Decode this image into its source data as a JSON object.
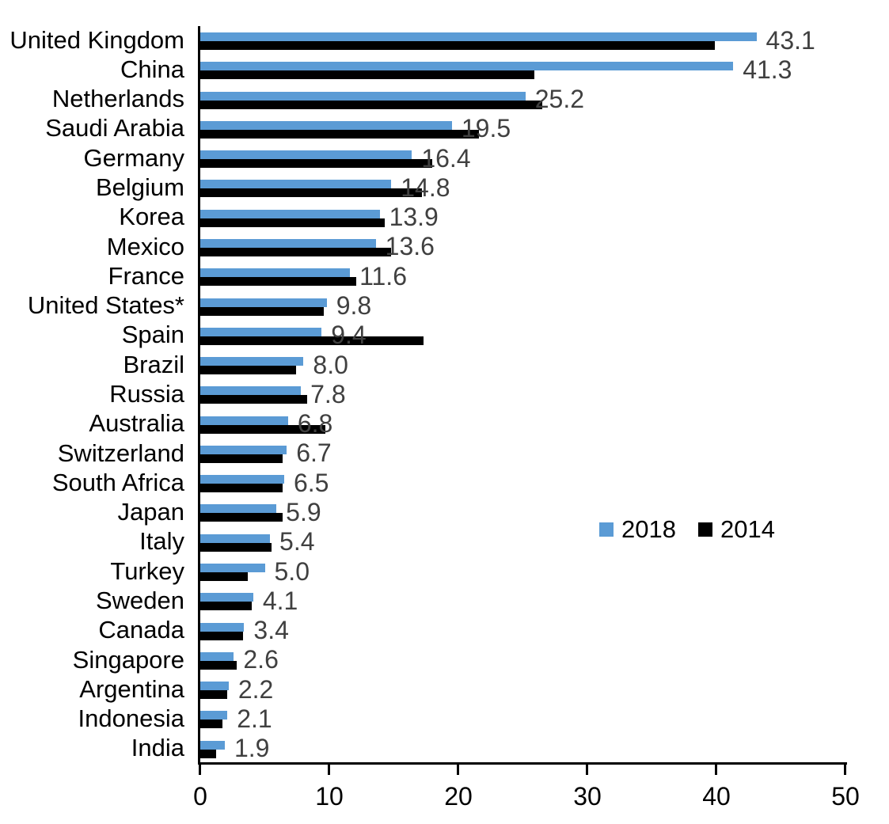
{
  "chart_data": {
    "type": "bar",
    "orientation": "horizontal",
    "title": "",
    "xlabel": "",
    "ylabel": "",
    "xlim": [
      0,
      50
    ],
    "x_ticks": [
      0,
      10,
      20,
      30,
      40,
      50
    ],
    "grid": false,
    "legend_position": "middle-right",
    "categories": [
      "United Kingdom",
      "China",
      "Netherlands",
      "Saudi Arabia",
      "Germany",
      "Belgium",
      "Korea",
      "Mexico",
      "France",
      "United States*",
      "Spain",
      "Brazil",
      "Russia",
      "Australia",
      "Switzerland",
      "South Africa",
      "Japan",
      "Italy",
      "Turkey",
      "Sweden",
      "Canada",
      "Singapore",
      "Argentina",
      "Indonesia",
      "India"
    ],
    "series": [
      {
        "name": "2018",
        "color": "#5B9BD5",
        "values": [
          43.1,
          41.3,
          25.2,
          19.5,
          16.4,
          14.8,
          13.9,
          13.6,
          11.6,
          9.8,
          9.4,
          8.0,
          7.8,
          6.8,
          6.7,
          6.5,
          5.9,
          5.4,
          5.0,
          4.1,
          3.4,
          2.6,
          2.2,
          2.1,
          1.9
        ]
      },
      {
        "name": "2014",
        "color": "#000000",
        "values": [
          39.9,
          25.9,
          26.5,
          21.6,
          18.0,
          17.2,
          14.3,
          14.8,
          12.1,
          9.6,
          17.3,
          7.4,
          8.3,
          9.7,
          6.4,
          6.4,
          6.4,
          5.5,
          3.7,
          4.0,
          3.3,
          2.8,
          2.1,
          1.7,
          1.2
        ]
      }
    ],
    "value_labels": [
      "43.1",
      "41.3",
      "25.2",
      "19.5",
      "16.4",
      "14.8",
      "13.9",
      "13.6",
      "11.6",
      "9.8",
      "9.4",
      "8.0",
      "7.8",
      "6.8",
      "6.7",
      "6.5",
      "5.9",
      "5.4",
      "5.0",
      "4.1",
      "3.4",
      "2.6",
      "2.2",
      "2.1",
      "1.9"
    ],
    "value_label_color": "#404040",
    "axis_color": "#000000"
  }
}
